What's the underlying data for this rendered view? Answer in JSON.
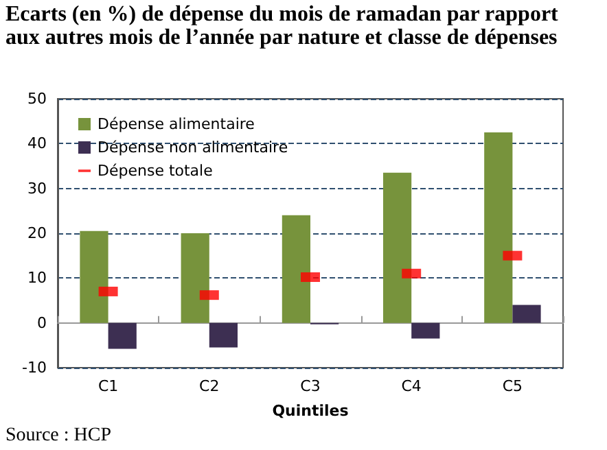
{
  "chart_data": {
    "type": "bar",
    "title": "Ecarts (en %) de dépense du mois de ramadan par rapport aux autres mois de l’année par  nature et classe de dépenses",
    "xlabel": "Quintiles",
    "categories": [
      "C1",
      "C2",
      "C3",
      "C4",
      "C5"
    ],
    "series": [
      {
        "name": "Dépense alimentaire",
        "color": "#77933c",
        "values": [
          20.5,
          20,
          24,
          33.5,
          42.5
        ]
      },
      {
        "name": "Dépense non alimentaire",
        "color": "#3d2f52",
        "values": [
          -5.8,
          -5.5,
          -0.3,
          -3.5,
          4
        ]
      },
      {
        "name": "Dépense totale",
        "type": "scatter",
        "color": "#ff0000",
        "values": [
          7,
          6.2,
          10.2,
          11,
          15
        ]
      }
    ],
    "ylim": [
      -10,
      50
    ],
    "yticks": [
      -10,
      0,
      10,
      20,
      30,
      40,
      50
    ],
    "grid": "y",
    "legend": "top left",
    "annotations": [
      "Source : HCP"
    ]
  }
}
